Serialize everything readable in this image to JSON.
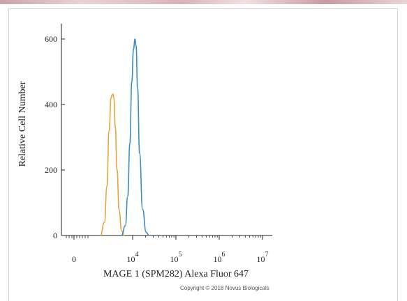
{
  "chart_data": {
    "type": "line",
    "title": "",
    "xlabel": "MAGE 1 (SPM282) Alexa Fluor 647",
    "ylabel": "Relative Cell Number",
    "x_scale": "log",
    "x_ticks": [
      {
        "value": 0,
        "base": "0",
        "exp": ""
      },
      {
        "value": 10000,
        "base": "10",
        "exp": "4"
      },
      {
        "value": 100000,
        "base": "10",
        "exp": "5"
      },
      {
        "value": 1000000,
        "base": "10",
        "exp": "6"
      },
      {
        "value": 10000000,
        "base": "10",
        "exp": "7"
      }
    ],
    "y_ticks": [
      "0",
      "200",
      "400",
      "600"
    ],
    "ylim": [
      0,
      600
    ],
    "grid": false,
    "series": [
      {
        "color": "#e8a23c",
        "x": [
          1500,
          1900,
          2200,
          2500,
          2800,
          3000,
          3150,
          3300,
          3600,
          4000,
          4500,
          5200,
          6000
        ],
        "y": [
          0,
          40,
          150,
          320,
          420,
          430,
          432,
          420,
          330,
          200,
          80,
          15,
          0
        ]
      },
      {
        "color": "#3a8cc1",
        "x": [
          5200,
          6500,
          7500,
          8500,
          9500,
          10500,
          11300,
          12000,
          13000,
          14500,
          17000,
          20500,
          24000
        ],
        "y": [
          0,
          30,
          120,
          280,
          470,
          570,
          600,
          580,
          450,
          250,
          80,
          10,
          0
        ]
      }
    ]
  },
  "footer": {
    "copyright": "Copyright © 2018 Novus Biologicals"
  }
}
